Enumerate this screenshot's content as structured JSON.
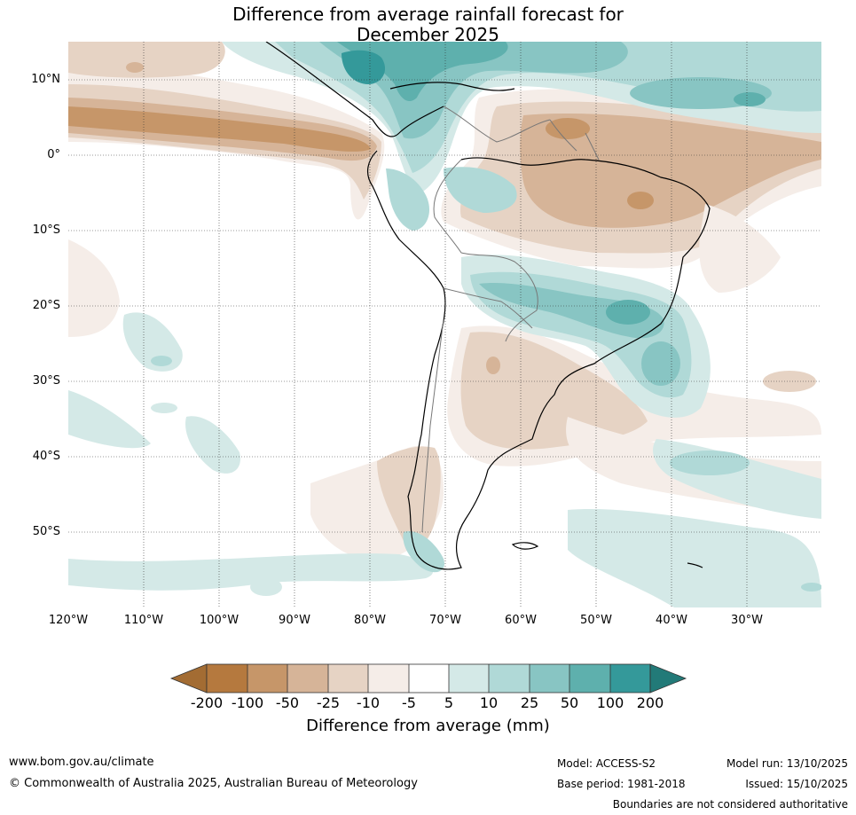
{
  "title": {
    "line1": "Difference from average rainfall forecast for",
    "line2": "December 2025"
  },
  "map": {
    "lat_labels": [
      "10°N",
      "0°",
      "10°S",
      "20°S",
      "30°S",
      "40°S",
      "50°S"
    ],
    "lon_labels": [
      "120°W",
      "110°W",
      "100°W",
      "90°W",
      "80°W",
      "70°W",
      "60°W",
      "50°W",
      "40°W",
      "30°W"
    ],
    "colors": {
      "dry_200": "#a36c33",
      "dry_100": "#b5793e",
      "dry_50": "#c69669",
      "dry_25": "#d6b498",
      "dry_10": "#e6d3c4",
      "dry_5": "#f5ede8",
      "neutral": "#ffffff",
      "wet_5": "#d4e9e7",
      "wet_10": "#b0d9d7",
      "wet_25": "#88c5c3",
      "wet_50": "#5eb0ad",
      "wet_100": "#34999a",
      "wet_200": "#227a78"
    }
  },
  "legend": {
    "ticks": [
      "-200",
      "-100",
      "-50",
      "-25",
      "-10",
      "-5",
      "5",
      "10",
      "25",
      "50",
      "100",
      "200"
    ],
    "title": "Difference from average (mm)"
  },
  "footer": {
    "website": "www.bom.gov.au/climate",
    "copyright": "© Commonwealth of Australia 2025, Australian Bureau of Meteorology",
    "model": "Model: ACCESS-S2",
    "base_period": "Base period: 1981-2018",
    "model_run": "Model run: 13/10/2025",
    "issued": "Issued: 15/10/2025",
    "disclaimer": "Boundaries are not considered authoritative"
  }
}
